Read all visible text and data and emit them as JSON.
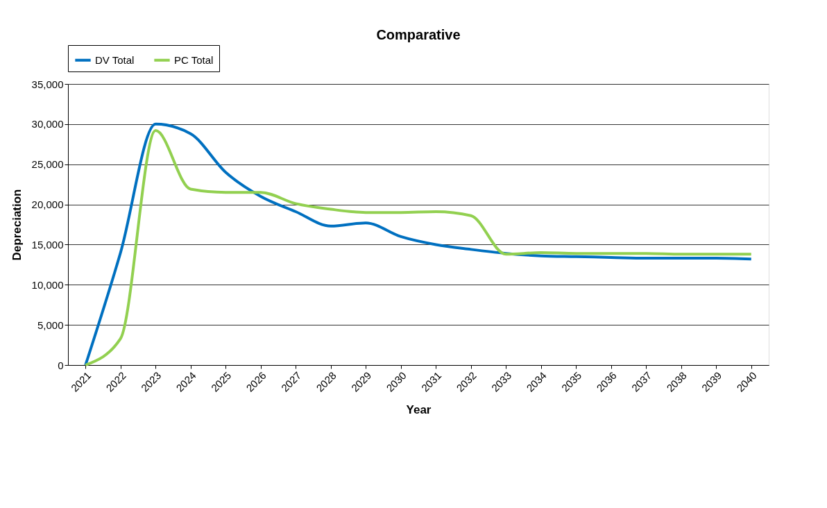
{
  "chart_data": {
    "type": "line",
    "title": "Comparative",
    "xlabel": "Year",
    "ylabel": "Depreciation",
    "categories": [
      "2021",
      "2022",
      "2023",
      "2024",
      "2025",
      "2026",
      "2027",
      "2028",
      "2029",
      "2030",
      "2031",
      "2032",
      "2033",
      "2034",
      "2035",
      "2036",
      "2037",
      "2038",
      "2039",
      "2040"
    ],
    "series": [
      {
        "name": "DV Total",
        "color": "#0070c0",
        "values": [
          0,
          14000,
          30000,
          28800,
          24000,
          21000,
          19100,
          17300,
          17700,
          16000,
          15000,
          14400,
          13900,
          13600,
          13500,
          13400,
          13300,
          13300,
          13300,
          13200
        ]
      },
      {
        "name": "PC Total",
        "color": "#92d050",
        "values": [
          0,
          3300,
          29200,
          21900,
          21500,
          21500,
          20100,
          19400,
          19000,
          19000,
          19100,
          18600,
          13800,
          14000,
          13900,
          13900,
          13900,
          13800,
          13800,
          13800
        ]
      }
    ],
    "ylim": [
      0,
      35000
    ],
    "yticks": [
      0,
      {
        "value": 5000,
        "label": "5,000"
      },
      {
        "value": 10000,
        "label": "10,000"
      },
      {
        "value": 15000,
        "label": "15,000"
      },
      {
        "value": 20000,
        "label": "20,000"
      },
      {
        "value": 25000,
        "label": "25,000"
      },
      {
        "value": 30000,
        "label": "30,000"
      },
      {
        "value": 35000,
        "label": "35,000"
      }
    ],
    "grid": "y",
    "legend": "top",
    "marker": "none",
    "line_style": "solid"
  }
}
